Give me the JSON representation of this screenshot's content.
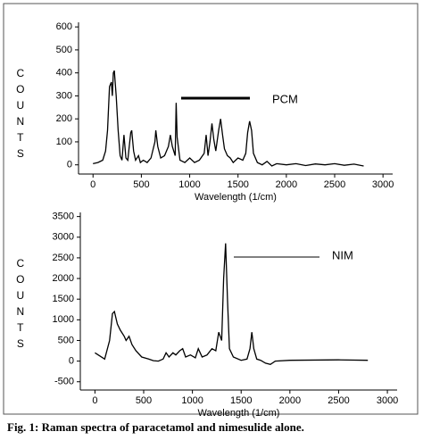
{
  "chart_data": [
    {
      "type": "line",
      "ylabel": "COUNTS",
      "xlabel": "Wavelength (1/cm)",
      "annotation": "PCM",
      "color": "#000000",
      "xlim": [
        -150,
        3100
      ],
      "ylim": [
        -40,
        620
      ],
      "xticks": [
        0,
        500,
        1000,
        1500,
        2000,
        2500,
        3000
      ],
      "yticks": [
        0,
        100,
        200,
        300,
        400,
        500,
        600
      ],
      "x": [
        0,
        50,
        100,
        130,
        150,
        170,
        190,
        200,
        210,
        220,
        240,
        260,
        280,
        300,
        320,
        340,
        360,
        390,
        400,
        420,
        440,
        470,
        490,
        520,
        560,
        600,
        640,
        650,
        670,
        700,
        740,
        780,
        800,
        820,
        850,
        860,
        870,
        900,
        950,
        1000,
        1050,
        1100,
        1150,
        1170,
        1190,
        1210,
        1230,
        1250,
        1270,
        1300,
        1320,
        1340,
        1360,
        1390,
        1420,
        1450,
        1500,
        1550,
        1580,
        1600,
        1620,
        1640,
        1660,
        1700,
        1750,
        1800,
        1850,
        1900,
        2000,
        2100,
        2200,
        2300,
        2400,
        2500,
        2600,
        2700,
        2800
      ],
      "values": [
        5,
        10,
        20,
        60,
        150,
        340,
        360,
        300,
        400,
        410,
        300,
        150,
        40,
        20,
        130,
        30,
        20,
        140,
        150,
        60,
        20,
        40,
        10,
        20,
        10,
        30,
        100,
        150,
        80,
        30,
        40,
        80,
        130,
        80,
        40,
        270,
        120,
        20,
        10,
        30,
        10,
        20,
        50,
        130,
        40,
        100,
        180,
        110,
        60,
        150,
        200,
        130,
        70,
        40,
        30,
        10,
        30,
        20,
        50,
        140,
        190,
        150,
        50,
        10,
        0,
        15,
        -5,
        5,
        0,
        5,
        -3,
        4,
        0,
        5,
        -2,
        3,
        -5
      ]
    },
    {
      "type": "line",
      "ylabel": "COUNTS",
      "xlabel": "Wavelength (1/cm)",
      "annotation": "NIM",
      "color": "#000000",
      "xlim": [
        -150,
        3100
      ],
      "ylim": [
        -700,
        3600
      ],
      "xticks": [
        0,
        500,
        1000,
        1500,
        2000,
        2500,
        3000
      ],
      "yticks": [
        -500,
        0,
        500,
        1000,
        1500,
        2000,
        2500,
        3000,
        3500
      ],
      "x": [
        0,
        100,
        150,
        180,
        200,
        230,
        260,
        300,
        320,
        350,
        380,
        420,
        480,
        550,
        600,
        650,
        700,
        730,
        760,
        800,
        830,
        870,
        900,
        930,
        980,
        1030,
        1060,
        1100,
        1150,
        1200,
        1240,
        1270,
        1300,
        1320,
        1340,
        1360,
        1380,
        1420,
        1500,
        1560,
        1590,
        1610,
        1630,
        1660,
        1700,
        1750,
        1800,
        1850,
        2000,
        2500,
        2800
      ],
      "values": [
        200,
        50,
        500,
        1150,
        1200,
        900,
        750,
        600,
        500,
        600,
        400,
        250,
        100,
        50,
        10,
        0,
        50,
        200,
        100,
        200,
        150,
        250,
        300,
        100,
        150,
        80,
        300,
        100,
        150,
        300,
        250,
        700,
        500,
        2000,
        2850,
        1500,
        300,
        100,
        20,
        50,
        300,
        700,
        300,
        50,
        20,
        -50,
        -80,
        0,
        20,
        30,
        20
      ]
    }
  ],
  "caption": "Fig. 1: Raman spectra of paracetamol and nimesulide alone."
}
